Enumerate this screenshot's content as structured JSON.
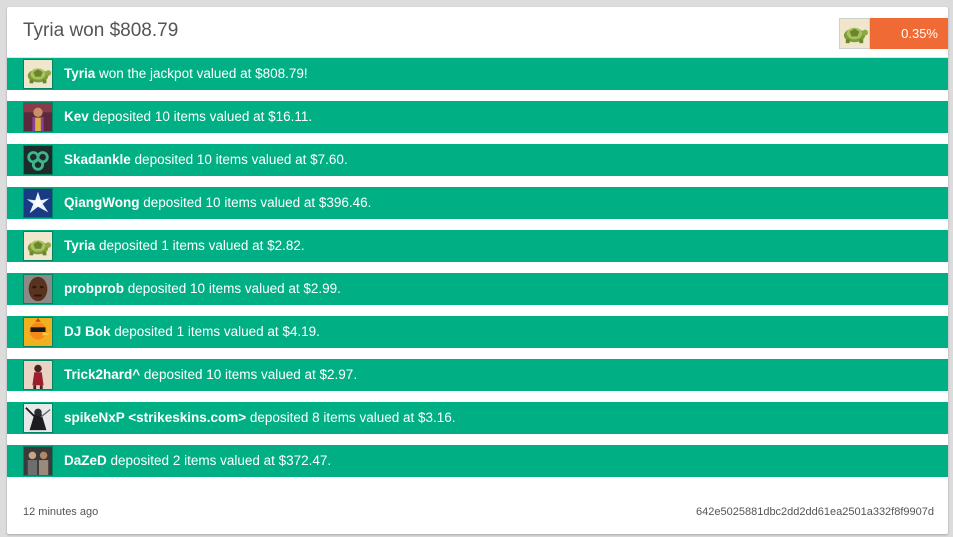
{
  "header": {
    "title": "Tyria won $808.79",
    "winner_avatar": "turtle-avatar-icon",
    "chance": "0.35%"
  },
  "colors": {
    "row_bg": "#00b084",
    "chance_bg": "#f06a35"
  },
  "rows": [
    {
      "name": "Tyria",
      "text": " won the jackpot valued at $808.79!",
      "avatar": "turtle-avatar-icon"
    },
    {
      "name": "Kev",
      "text": " deposited 10 items valued at $16.11.",
      "avatar": "person-avatar-icon"
    },
    {
      "name": "Skadankle",
      "text": " deposited 10 items valued at $7.60.",
      "avatar": "swirl-avatar-icon"
    },
    {
      "name": "QiangWong",
      "text": " deposited 10 items valued at $396.46.",
      "avatar": "burst-avatar-icon"
    },
    {
      "name": "Tyria",
      "text": " deposited 1 items valued at $2.82.",
      "avatar": "turtle-avatar-icon"
    },
    {
      "name": "probprob",
      "text": " deposited 10 items valued at $2.99.",
      "avatar": "face-avatar-icon"
    },
    {
      "name": "DJ Bok",
      "text": " deposited 1 items valued at $4.19.",
      "avatar": "chicken-avatar-icon"
    },
    {
      "name": "Trick2hard^",
      "text": " deposited 10 items valued at $2.97.",
      "avatar": "dancer-avatar-icon"
    },
    {
      "name": "spikeNxP <strikeskins.com>",
      "text": " deposited 8 items valued at $3.16.",
      "avatar": "ninja-avatar-icon"
    },
    {
      "name": "DaZeD",
      "text": " deposited 2 items valued at $372.47.",
      "avatar": "group-avatar-icon"
    }
  ],
  "footer": {
    "time": "12 minutes ago",
    "hash": "642e5025881dbc2dd2dd61ea2501a332f8f9907d"
  }
}
